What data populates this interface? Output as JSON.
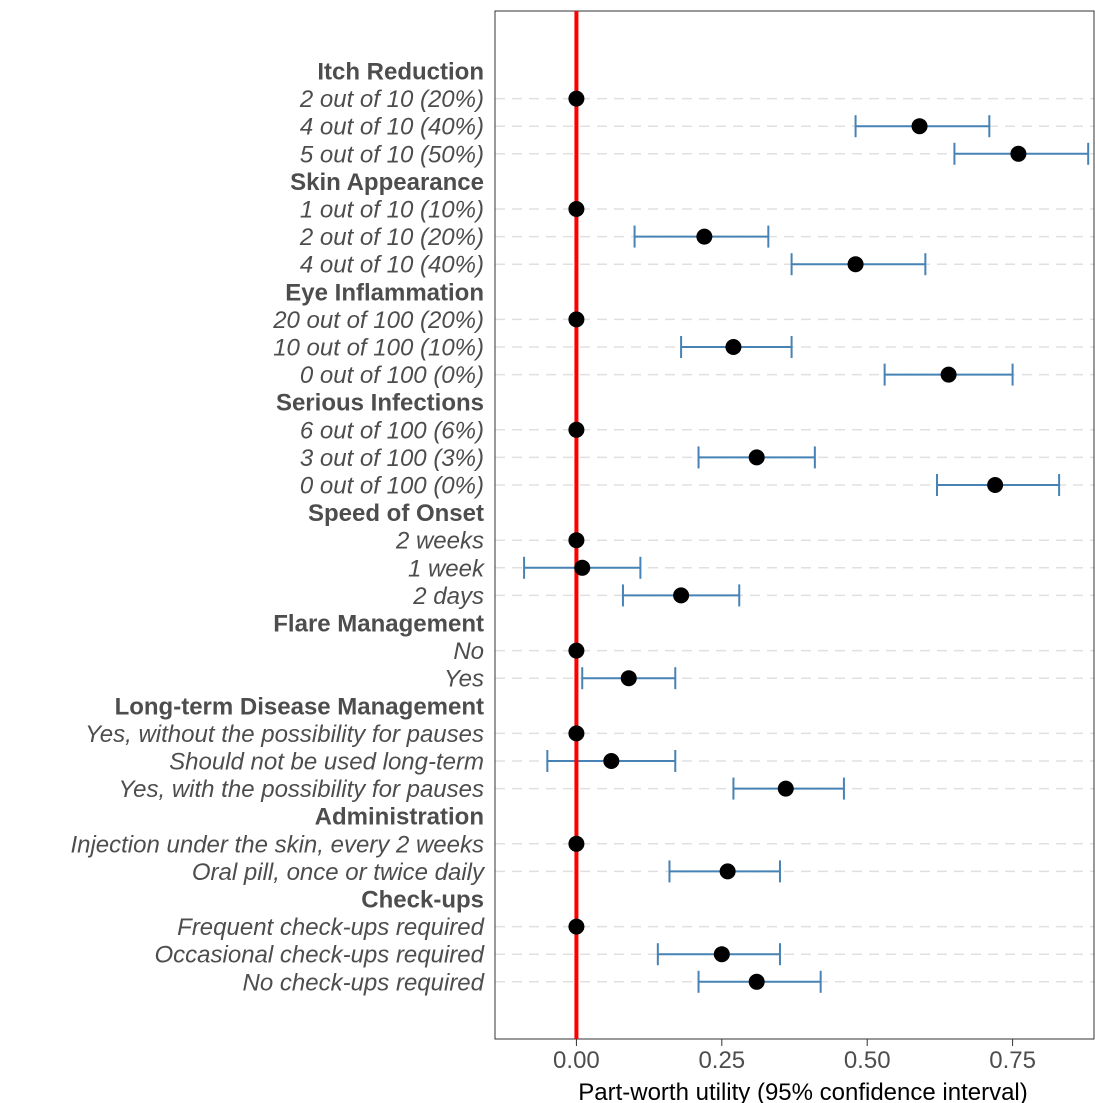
{
  "colors": {
    "reference_line": "#ff0000",
    "error_bar": "#4682b4",
    "point": "#000000",
    "gridline": "#e0e0e0",
    "label_text": "#4d4d4d"
  },
  "chart_data": {
    "type": "scatter",
    "xlabel": "Part-worth utility (95% confidence interval)",
    "xlim": [
      -0.14,
      0.89
    ],
    "x_ticks": [
      0.0,
      0.25,
      0.5,
      0.75
    ],
    "x_tick_labels": [
      "0.00",
      "0.25",
      "0.50",
      "0.75"
    ],
    "reference_line_x": 0,
    "grid": "horizontal dashed at level rows",
    "rows": [
      {
        "label": "Itch Reduction",
        "kind": "header"
      },
      {
        "label": "2 out of 10 (20%)",
        "kind": "level",
        "estimate": 0,
        "lower": null,
        "upper": null
      },
      {
        "label": "4 out of 10 (40%)",
        "kind": "level",
        "estimate": 0.59,
        "lower": 0.48,
        "upper": 0.71
      },
      {
        "label": "5 out of 10 (50%)",
        "kind": "level",
        "estimate": 0.76,
        "lower": 0.65,
        "upper": 0.88
      },
      {
        "label": "Skin Appearance",
        "kind": "header"
      },
      {
        "label": "1 out of 10 (10%)",
        "kind": "level",
        "estimate": 0,
        "lower": null,
        "upper": null
      },
      {
        "label": "2 out of 10 (20%)",
        "kind": "level",
        "estimate": 0.22,
        "lower": 0.1,
        "upper": 0.33
      },
      {
        "label": "4 out of 10 (40%)",
        "kind": "level",
        "estimate": 0.48,
        "lower": 0.37,
        "upper": 0.6
      },
      {
        "label": "Eye Inflammation",
        "kind": "header"
      },
      {
        "label": "20 out of 100 (20%)",
        "kind": "level",
        "estimate": 0,
        "lower": null,
        "upper": null
      },
      {
        "label": "10 out of 100 (10%)",
        "kind": "level",
        "estimate": 0.27,
        "lower": 0.18,
        "upper": 0.37
      },
      {
        "label": "0 out of 100 (0%)",
        "kind": "level",
        "estimate": 0.64,
        "lower": 0.53,
        "upper": 0.75
      },
      {
        "label": "Serious Infections",
        "kind": "header"
      },
      {
        "label": "6 out of 100 (6%)",
        "kind": "level",
        "estimate": 0,
        "lower": null,
        "upper": null
      },
      {
        "label": "3 out of 100 (3%)",
        "kind": "level",
        "estimate": 0.31,
        "lower": 0.21,
        "upper": 0.41
      },
      {
        "label": "0 out of 100 (0%)",
        "kind": "level",
        "estimate": 0.72,
        "lower": 0.62,
        "upper": 0.83
      },
      {
        "label": "Speed of Onset",
        "kind": "header"
      },
      {
        "label": "2 weeks",
        "kind": "level",
        "estimate": 0,
        "lower": null,
        "upper": null
      },
      {
        "label": "1 week",
        "kind": "level",
        "estimate": 0.01,
        "lower": -0.09,
        "upper": 0.11
      },
      {
        "label": "2 days",
        "kind": "level",
        "estimate": 0.18,
        "lower": 0.08,
        "upper": 0.28
      },
      {
        "label": "Flare Management",
        "kind": "header"
      },
      {
        "label": "No",
        "kind": "level",
        "estimate": 0,
        "lower": null,
        "upper": null
      },
      {
        "label": "Yes",
        "kind": "level",
        "estimate": 0.09,
        "lower": 0.01,
        "upper": 0.17
      },
      {
        "label": "Long-term Disease Management",
        "kind": "header"
      },
      {
        "label": "Yes, without the possibility for pauses",
        "kind": "level",
        "estimate": 0,
        "lower": null,
        "upper": null
      },
      {
        "label": "Should not be used long-term",
        "kind": "level",
        "estimate": 0.06,
        "lower": -0.05,
        "upper": 0.17
      },
      {
        "label": "Yes, with the possibility for pauses",
        "kind": "level",
        "estimate": 0.36,
        "lower": 0.27,
        "upper": 0.46
      },
      {
        "label": "Administration",
        "kind": "header"
      },
      {
        "label": "Injection under the skin, every 2 weeks",
        "kind": "level",
        "estimate": 0,
        "lower": null,
        "upper": null
      },
      {
        "label": "Oral pill, once or twice daily",
        "kind": "level",
        "estimate": 0.26,
        "lower": 0.16,
        "upper": 0.35
      },
      {
        "label": "Check-ups",
        "kind": "header"
      },
      {
        "label": "Frequent check-ups required",
        "kind": "level",
        "estimate": 0,
        "lower": null,
        "upper": null
      },
      {
        "label": "Occasional check-ups required",
        "kind": "level",
        "estimate": 0.25,
        "lower": 0.14,
        "upper": 0.35
      },
      {
        "label": "No check-ups required",
        "kind": "level",
        "estimate": 0.31,
        "lower": 0.21,
        "upper": 0.42
      }
    ]
  }
}
